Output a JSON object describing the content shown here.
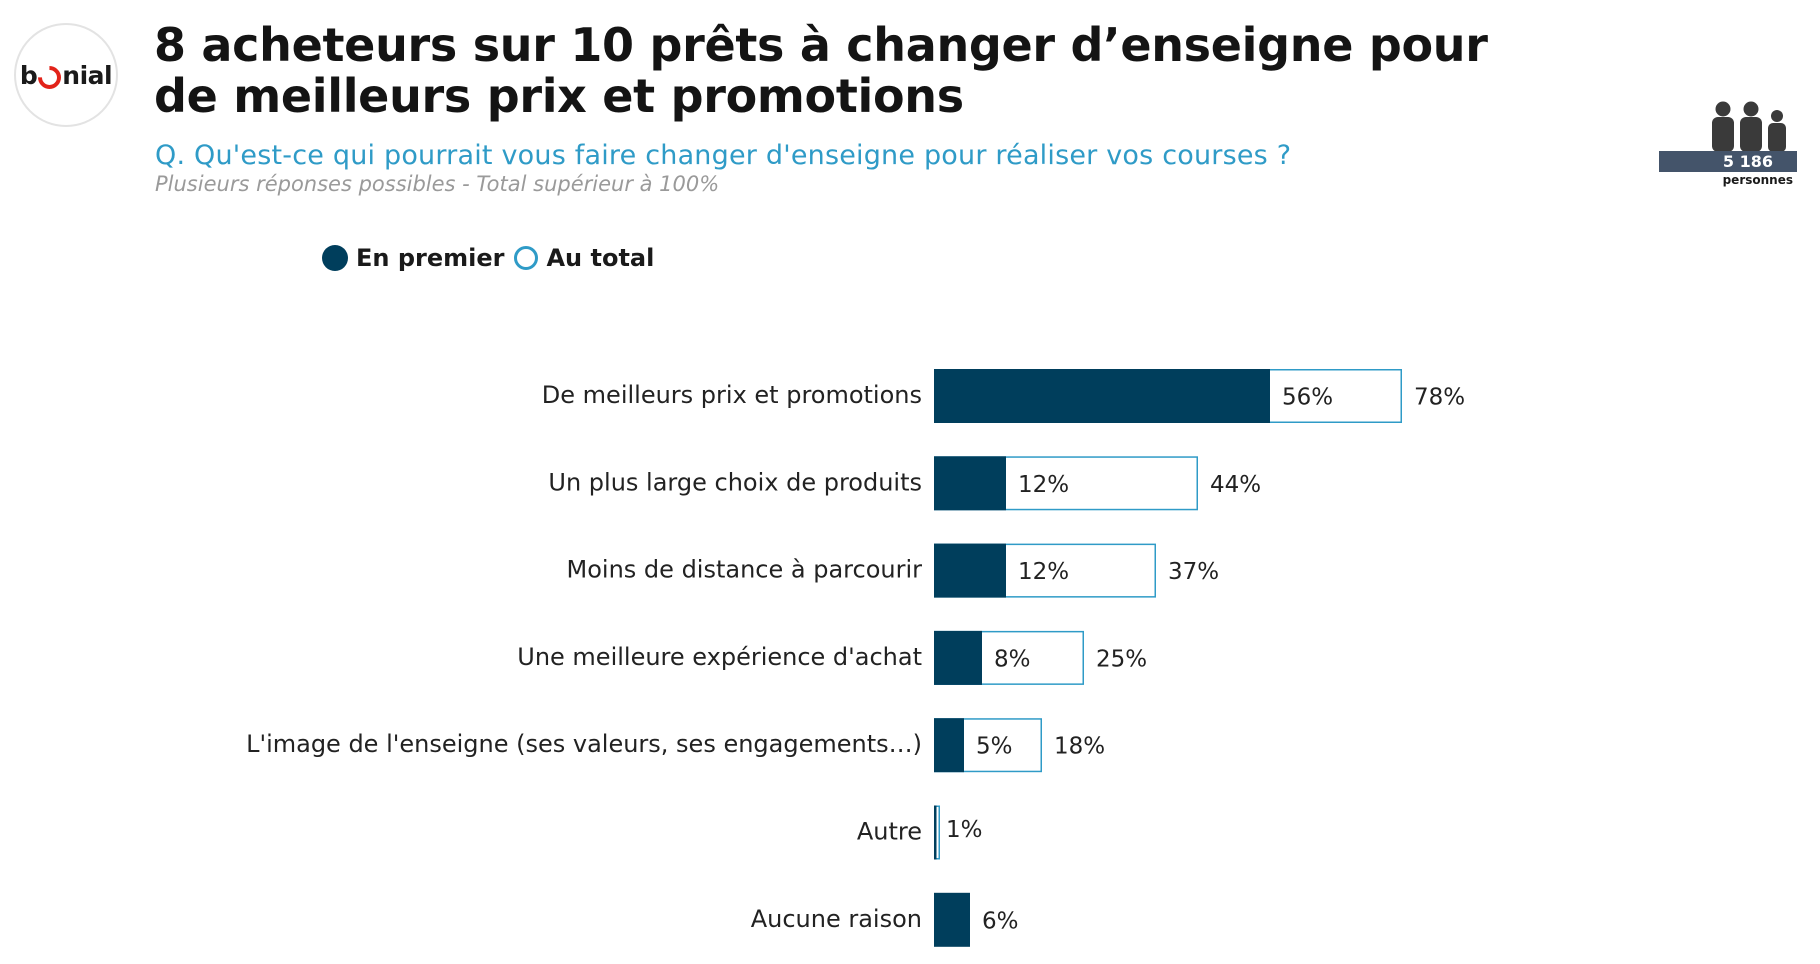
{
  "brand": {
    "logo_text_left": "b",
    "logo_text_right": "nial",
    "accent_color": "#e2231a"
  },
  "header": {
    "title": "8 acheteurs sur 10 prêts à changer d’enseigne pour de meilleurs prix et promotions",
    "question": "Q. Qu'est-ce qui pourrait vous faire changer d'enseigne pour réaliser vos courses ?",
    "note": "Plusieurs réponses possibles - Total supérieur à 100%"
  },
  "sample": {
    "count": "5 186",
    "caption": "personnes",
    "icon": "people-group-icon"
  },
  "legend": {
    "first_label": "En premier",
    "total_label": "Au total"
  },
  "colors": {
    "first": "#003e5c",
    "total_border": "#2f9bc7",
    "question": "#2f9bc7",
    "sample_bar": "#44546a"
  },
  "chart_data": {
    "type": "bar",
    "orientation": "horizontal",
    "categories": [
      "De meilleurs prix et promotions",
      "Un plus large choix de produits",
      "Moins de distance à parcourir",
      "Une meilleure expérience d'achat",
      "L'image de l'enseigne (ses valeurs, ses engagements…)",
      "Autre",
      "Aucune raison"
    ],
    "series": [
      {
        "name": "En premier",
        "values": [
          56,
          12,
          12,
          8,
          5,
          null,
          6
        ]
      },
      {
        "name": "Au total",
        "values": [
          78,
          44,
          37,
          25,
          18,
          1,
          null
        ]
      }
    ],
    "value_labels": {
      "first": [
        "56%",
        "12%",
        "12%",
        "8%",
        "5%",
        "",
        "6%"
      ],
      "total": [
        "78%",
        "44%",
        "37%",
        "25%",
        "18%",
        "1%",
        ""
      ]
    },
    "unit": "%",
    "xlim": [
      0,
      100
    ],
    "legend_position": "top-left",
    "grid": false
  }
}
